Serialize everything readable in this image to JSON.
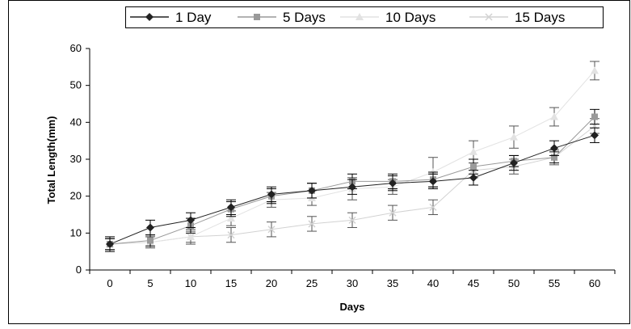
{
  "chart_data": {
    "type": "line",
    "title": "",
    "xlabel": "Days",
    "ylabel": "Total Length(mm)",
    "x": [
      0,
      5,
      10,
      15,
      20,
      25,
      30,
      35,
      40,
      45,
      50,
      55,
      60
    ],
    "xlim": [
      -2.5,
      62.5
    ],
    "ylim": [
      0,
      60
    ],
    "yticks": [
      0,
      10,
      20,
      30,
      40,
      50,
      60
    ],
    "grid": false,
    "legend_position": "top",
    "series": [
      {
        "name": "1 Day",
        "marker": "diamond",
        "color": "#222222",
        "values": [
          7,
          11.5,
          13.5,
          17,
          20.5,
          21.5,
          22.5,
          23.5,
          24,
          25,
          29,
          33,
          36.5
        ],
        "errors": [
          2,
          2,
          2,
          2,
          2,
          2,
          2,
          2,
          2,
          2,
          2,
          2,
          2
        ]
      },
      {
        "name": "5 Days",
        "marker": "square",
        "color": "#9a9a9a",
        "values": [
          7,
          8,
          12,
          16.5,
          20,
          21.5,
          24,
          24,
          24.5,
          28,
          29.5,
          30.5,
          41.5
        ],
        "errors": [
          1.5,
          1.5,
          2,
          2,
          2,
          2,
          2,
          2,
          2,
          2,
          1.5,
          1.5,
          2
        ]
      },
      {
        "name": "10 Days",
        "marker": "triangle",
        "color": "#e2e2e2",
        "values": [
          7,
          7.5,
          9,
          14,
          19,
          19.5,
          22,
          22.5,
          26.5,
          32,
          36,
          41.5,
          54
        ],
        "errors": [
          1.5,
          1.5,
          1.5,
          2,
          2,
          2,
          3,
          2,
          4,
          3,
          3,
          2.5,
          2.5
        ]
      },
      {
        "name": "15 Days",
        "marker": "x",
        "color": "#d2d2d2",
        "values": [
          7,
          7.5,
          9,
          9.5,
          11,
          12.5,
          13.5,
          15.5,
          17,
          27,
          28,
          30.5,
          39
        ],
        "errors": [
          1.5,
          1.5,
          2,
          2,
          2,
          2,
          2,
          2,
          2,
          2,
          2,
          2,
          2
        ]
      }
    ]
  }
}
